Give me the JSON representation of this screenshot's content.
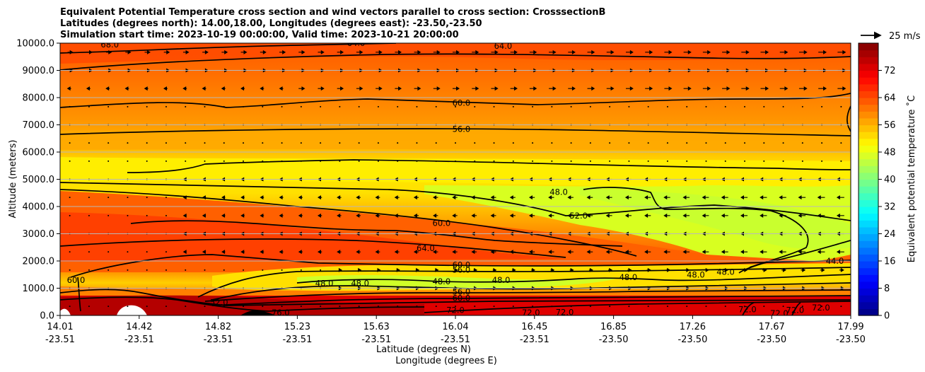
{
  "chart_data": {
    "type": "heatmap",
    "title": [
      "Equivalent Potential Temperature cross section and wind vectors parallel to cross section: CrosssectionB",
      "Latitudes (degrees north): 14.00,18.00, Longitudes (degrees east): -23.50,-23.50",
      "Simulation start time: 2023-10-19 00:00:00, Valid time: 2023-10-21 20:00:00"
    ],
    "xlabel_lat": "Latitude (degrees N)",
    "xlabel_lon": "Longitude (degrees E)",
    "ylabel": "Altitude (meters)",
    "ylim": [
      0,
      10000
    ],
    "xlim_lat": [
      14.01,
      17.99
    ],
    "yticks": [
      "0.0",
      "1000.0",
      "2000.0",
      "3000.0",
      "4000.0",
      "5000.0",
      "6000.0",
      "7000.0",
      "8000.0",
      "9000.0",
      "10000.0"
    ],
    "xticks_lat": [
      "14.01",
      "14.42",
      "14.82",
      "15.23",
      "15.63",
      "16.04",
      "16.45",
      "16.85",
      "17.26",
      "17.67",
      "17.99"
    ],
    "xticks_lon": [
      "-23.51",
      "-23.51",
      "-23.51",
      "-23.51",
      "-23.51",
      "-23.51",
      "-23.51",
      "-23.50",
      "-23.50",
      "-23.50",
      "-23.50"
    ],
    "colorbar": {
      "label": "Equivalent potential temperature ˚C",
      "range": [
        0,
        80
      ],
      "step": 2,
      "ticks": [
        "0",
        "8",
        "16",
        "24",
        "32",
        "40",
        "48",
        "56",
        "64",
        "72"
      ]
    },
    "wind_reference": "25 m/s",
    "contour_labels": [
      {
        "text": "68.0",
        "lat": 14.26,
        "alt": 9950
      },
      {
        "text": "64.0",
        "lat": 15.5,
        "alt": 10000
      },
      {
        "text": "64.0",
        "lat": 16.24,
        "alt": 9900
      },
      {
        "text": "60.0",
        "lat": 16.03,
        "alt": 7800
      },
      {
        "text": "56.0",
        "lat": 16.03,
        "alt": 6850
      },
      {
        "text": "48.0",
        "lat": 16.52,
        "alt": 4530
      },
      {
        "text": "52.0",
        "lat": 16.62,
        "alt": 3660
      },
      {
        "text": "60.0",
        "lat": 15.93,
        "alt": 3390
      },
      {
        "text": "64.0",
        "lat": 15.85,
        "alt": 2470
      },
      {
        "text": "60.0",
        "lat": 16.03,
        "alt": 1860
      },
      {
        "text": "56.0",
        "lat": 16.03,
        "alt": 1680
      },
      {
        "text": "48.0",
        "lat": 15.93,
        "alt": 1250
      },
      {
        "text": "48.0",
        "lat": 16.23,
        "alt": 1300
      },
      {
        "text": "56.0",
        "lat": 16.03,
        "alt": 870
      },
      {
        "text": "60.0",
        "lat": 16.03,
        "alt": 640
      },
      {
        "text": "60.0",
        "lat": 14.09,
        "alt": 1300
      },
      {
        "text": "52.0",
        "lat": 14.81,
        "alt": 480
      },
      {
        "text": "76.0",
        "lat": 15.12,
        "alt": 100
      },
      {
        "text": "72.0",
        "lat": 16.0,
        "alt": 200
      },
      {
        "text": "72.0",
        "lat": 16.38,
        "alt": 100
      },
      {
        "text": "72.0",
        "lat": 16.55,
        "alt": 120
      },
      {
        "text": "48.0",
        "lat": 15.34,
        "alt": 1180
      },
      {
        "text": "48.0",
        "lat": 15.52,
        "alt": 1180
      },
      {
        "text": "48.0",
        "lat": 16.87,
        "alt": 1400
      },
      {
        "text": "48.0",
        "lat": 17.21,
        "alt": 1500
      },
      {
        "text": "48.0",
        "lat": 17.36,
        "alt": 1600
      },
      {
        "text": "44.0",
        "lat": 17.91,
        "alt": 2000
      },
      {
        "text": "72.0",
        "lat": 17.47,
        "alt": 220
      },
      {
        "text": "72.0",
        "lat": 17.63,
        "alt": 80
      },
      {
        "text": "72.0",
        "lat": 17.71,
        "alt": 200
      },
      {
        "text": "72.0",
        "lat": 17.84,
        "alt": 280
      }
    ]
  }
}
